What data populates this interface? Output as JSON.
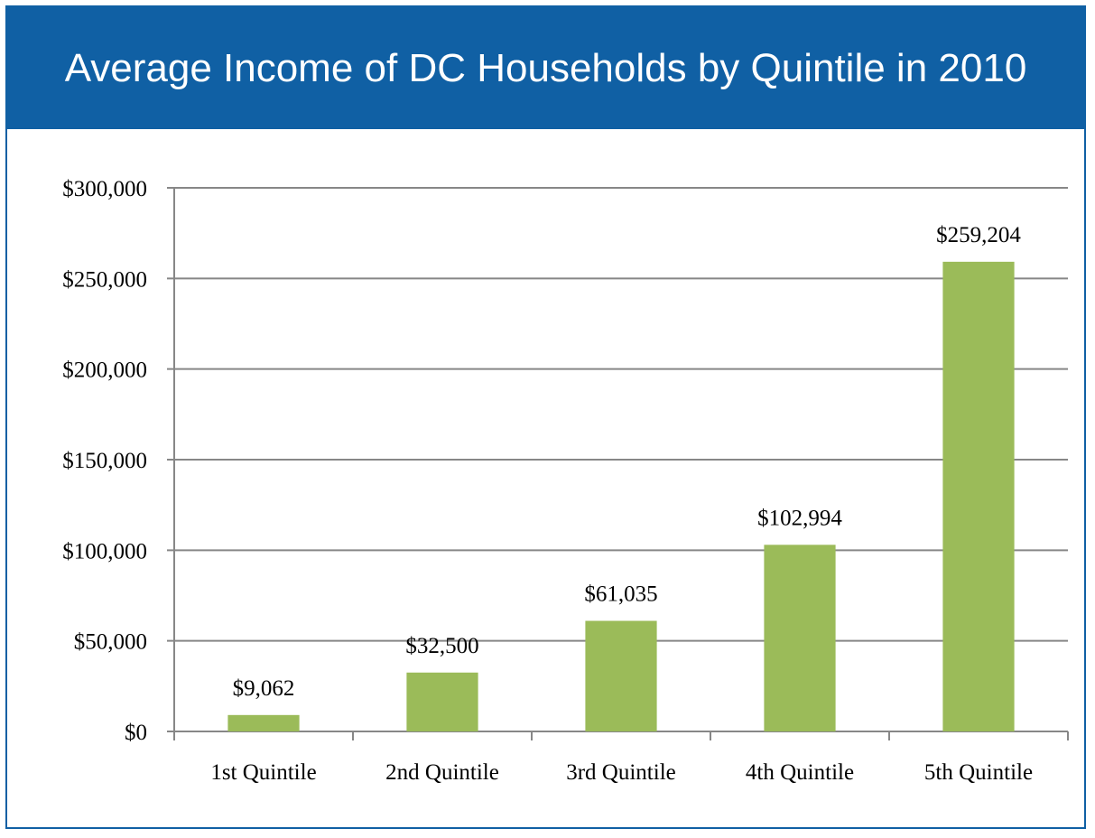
{
  "chart_data": {
    "type": "bar",
    "title": "Average Income of DC Households by Quintile in 2010",
    "categories": [
      "1st Quintile",
      "2nd Quintile",
      "3rd Quintile",
      "4th Quintile",
      "5th Quintile"
    ],
    "values": [
      9062,
      32500,
      61035,
      102994,
      259204
    ],
    "data_labels": [
      "$9,062",
      "$32,500",
      "$61,035",
      "$102,994",
      "$259,204"
    ],
    "y_ticks": [
      0,
      50000,
      100000,
      150000,
      200000,
      250000,
      300000
    ],
    "y_tick_labels": [
      "$0",
      "$50,000",
      "$100,000",
      "$150,000",
      "$200,000",
      "$250,000",
      "$300,000"
    ],
    "ylim": [
      0,
      300000
    ],
    "xlabel": "",
    "ylabel": "",
    "grid": true,
    "legend": "none",
    "colors": {
      "bar": "#9bbb59",
      "title_background": "#1060a4",
      "title_text": "#ffffff",
      "gridline": "#878787"
    }
  }
}
